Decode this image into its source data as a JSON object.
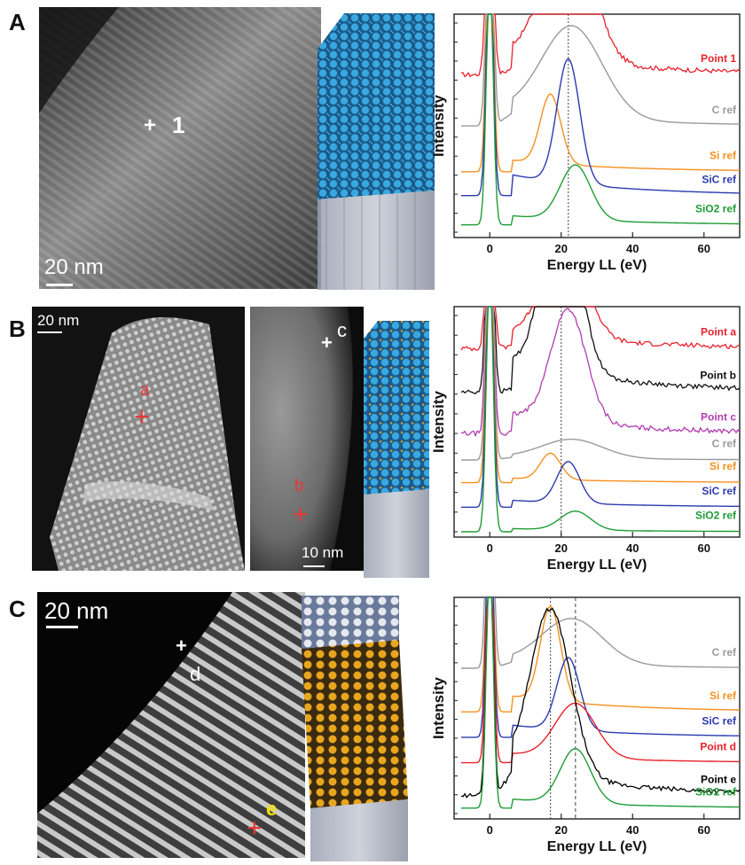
{
  "panels": {
    "A": {
      "letter": "A",
      "scalebar": "20 nm",
      "markers": [
        {
          "label": "1",
          "color": "#ffffff"
        }
      ]
    },
    "B": {
      "letter": "B",
      "scalebar_left": "20 nm",
      "scalebar_right": "10 nm",
      "markers": [
        {
          "label": "a",
          "color": "#e53935"
        },
        {
          "label": "b",
          "color": "#e53935"
        },
        {
          "label": "c",
          "color": "#ffffff"
        }
      ]
    },
    "C": {
      "letter": "C",
      "scalebar": "20 nm",
      "markers": [
        {
          "label": "d",
          "color": "#ffffff"
        },
        {
          "label": "e",
          "color": "#f7e200"
        }
      ]
    }
  },
  "chart_data": [
    {
      "type": "line",
      "panel": "A",
      "xlabel": "Energy LL (eV)",
      "ylabel": "Intensity",
      "xlim": [
        -10,
        70
      ],
      "xticks": [
        "0",
        "20",
        "40",
        "60"
      ],
      "vline": 22,
      "series": [
        {
          "name": "Point 1",
          "color": "#e8212b",
          "offset": 0.86,
          "peak": 22,
          "width": 9,
          "amp": 0.82,
          "noisy": true
        },
        {
          "name": "C ref",
          "color": "#9a9a9a",
          "offset": 0.58,
          "peak": 23,
          "width": 12,
          "amp": 0.5,
          "noisy": false
        },
        {
          "name": "Si ref",
          "color": "#f5901e",
          "offset": 0.33,
          "peak": 17,
          "width": 4,
          "amp": 0.38,
          "noisy": false
        },
        {
          "name": "SiC ref",
          "color": "#2b3ab0",
          "offset": 0.2,
          "peak": 22,
          "width": 4.5,
          "amp": 0.68,
          "noisy": false
        },
        {
          "name": "SiO2 ref",
          "color": "#1e9c36",
          "offset": 0.04,
          "peak": 24,
          "width": 6,
          "amp": 0.3,
          "noisy": false
        }
      ]
    },
    {
      "type": "line",
      "panel": "B",
      "xlabel": "Energy LL (eV)",
      "ylabel": "Intensity",
      "xlim": [
        -10,
        70
      ],
      "xticks": [
        "0",
        "20",
        "40",
        "60"
      ],
      "vline": 20,
      "series": [
        {
          "name": "Point a",
          "color": "#e8212b",
          "offset": 0.97,
          "peak": 21,
          "width": 8,
          "amp": 0.55,
          "noisy": true
        },
        {
          "name": "Point b",
          "color": "#111111",
          "offset": 0.74,
          "peak": 20,
          "width": 7,
          "amp": 0.98,
          "noisy": true
        },
        {
          "name": "Point c",
          "color": "#b23bb2",
          "offset": 0.52,
          "peak": 22,
          "width": 7,
          "amp": 0.6,
          "noisy": true
        },
        {
          "name": "C ref",
          "color": "#9a9a9a",
          "offset": 0.38,
          "peak": 23,
          "width": 12,
          "amp": 0.1,
          "noisy": false
        },
        {
          "name": "Si ref",
          "color": "#f5901e",
          "offset": 0.26,
          "peak": 17,
          "width": 4,
          "amp": 0.14,
          "noisy": false
        },
        {
          "name": "SiC ref",
          "color": "#2b3ab0",
          "offset": 0.13,
          "peak": 22,
          "width": 4.5,
          "amp": 0.22,
          "noisy": false
        },
        {
          "name": "SiO2 ref",
          "color": "#1e9c36",
          "offset": 0.0,
          "peak": 24,
          "width": 6,
          "amp": 0.1,
          "noisy": false
        }
      ]
    },
    {
      "type": "line",
      "panel": "C",
      "xlabel": "Energy LL (eV)",
      "ylabel": "Intensity",
      "xlim": [
        -10,
        70
      ],
      "xticks": [
        "0",
        "20",
        "40",
        "60"
      ],
      "vline": 17,
      "vline2": 24,
      "series": [
        {
          "name": "C ref",
          "color": "#9a9a9a",
          "offset": 0.8,
          "peak": 23,
          "width": 12,
          "amp": 0.25,
          "noisy": false
        },
        {
          "name": "Si ref",
          "color": "#f5901e",
          "offset": 0.56,
          "peak": 17,
          "width": 4,
          "amp": 0.52,
          "noisy": false
        },
        {
          "name": "SiC ref",
          "color": "#2b3ab0",
          "offset": 0.42,
          "peak": 22,
          "width": 4.5,
          "amp": 0.4,
          "noisy": false
        },
        {
          "name": "Point d",
          "color": "#e8212b",
          "offset": 0.28,
          "peak": 24,
          "width": 8,
          "amp": 0.3,
          "noisy": false
        },
        {
          "name": "Point e",
          "color": "#000000",
          "offset": 0.1,
          "peak": 17,
          "width": 8,
          "amp": 0.92,
          "noisy": true
        },
        {
          "name": "SiO2 ref",
          "color": "#1e9c36",
          "offset": 0.03,
          "peak": 24,
          "width": 6,
          "amp": 0.3,
          "noisy": false
        }
      ]
    }
  ]
}
